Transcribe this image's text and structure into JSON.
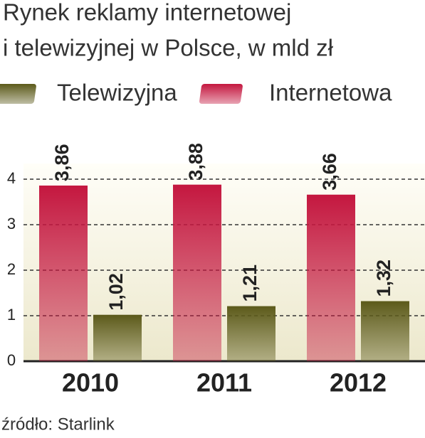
{
  "chart_data": {
    "type": "bar",
    "title": "Rynek reklamy internetowej",
    "subtitle": "i telewizyjnej w Polsce, w mld zł",
    "categories": [
      "2010",
      "2011",
      "2012"
    ],
    "series": [
      {
        "name": "Telewizyjna",
        "color": "#5c5a1a",
        "values": [
          1.02,
          1.21,
          1.32
        ],
        "value_labels": [
          "1,02",
          "1,21",
          "1,32"
        ]
      },
      {
        "name": "Internetowa",
        "color": "#c4173f",
        "values": [
          3.86,
          3.88,
          3.66
        ],
        "value_labels": [
          "3,86",
          "3,88",
          "3,66"
        ]
      }
    ],
    "ylim": [
      0,
      4
    ],
    "yticks": [
      0,
      1,
      2,
      3,
      4
    ],
    "grid": true,
    "source": "źródło: Starlink"
  }
}
